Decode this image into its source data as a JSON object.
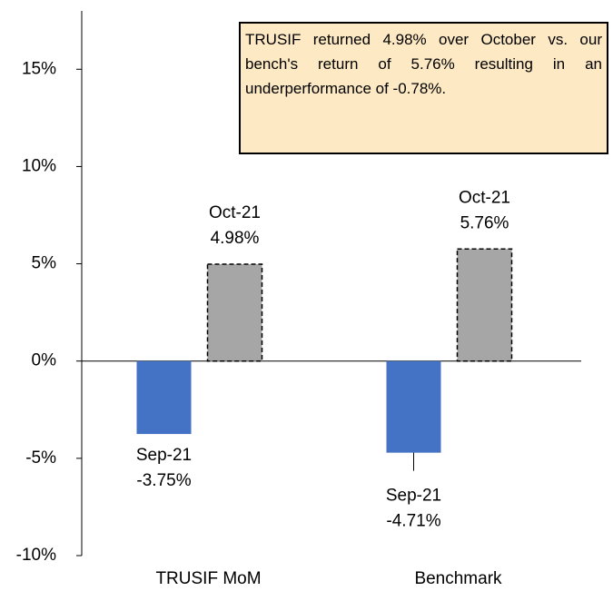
{
  "chart_data": {
    "type": "bar",
    "categories": [
      "TRUSIF MoM",
      "Benchmark"
    ],
    "series": [
      {
        "name": "Sep-21",
        "color": "#4472c4",
        "values": [
          -3.75,
          -4.71
        ],
        "value_labels": [
          "-3.75%",
          "-4.71%"
        ]
      },
      {
        "name": "Oct-21",
        "color": "#a6a6a6",
        "values": [
          4.98,
          5.76
        ],
        "value_labels": [
          "4.98%",
          "5.76%"
        ]
      }
    ],
    "ylim": [
      -10,
      18
    ],
    "yticks": [
      {
        "value": -10,
        "label": "-10%"
      },
      {
        "value": -5,
        "label": "-5%"
      },
      {
        "value": 0,
        "label": "0%"
      },
      {
        "value": 5,
        "label": "5%"
      },
      {
        "value": 10,
        "label": "10%"
      },
      {
        "value": 15,
        "label": "15%"
      }
    ],
    "annotation": "TRUSIF returned 4.98% over October vs. our bench's return of 5.76% resulting in an underperformance of -0.78%."
  }
}
